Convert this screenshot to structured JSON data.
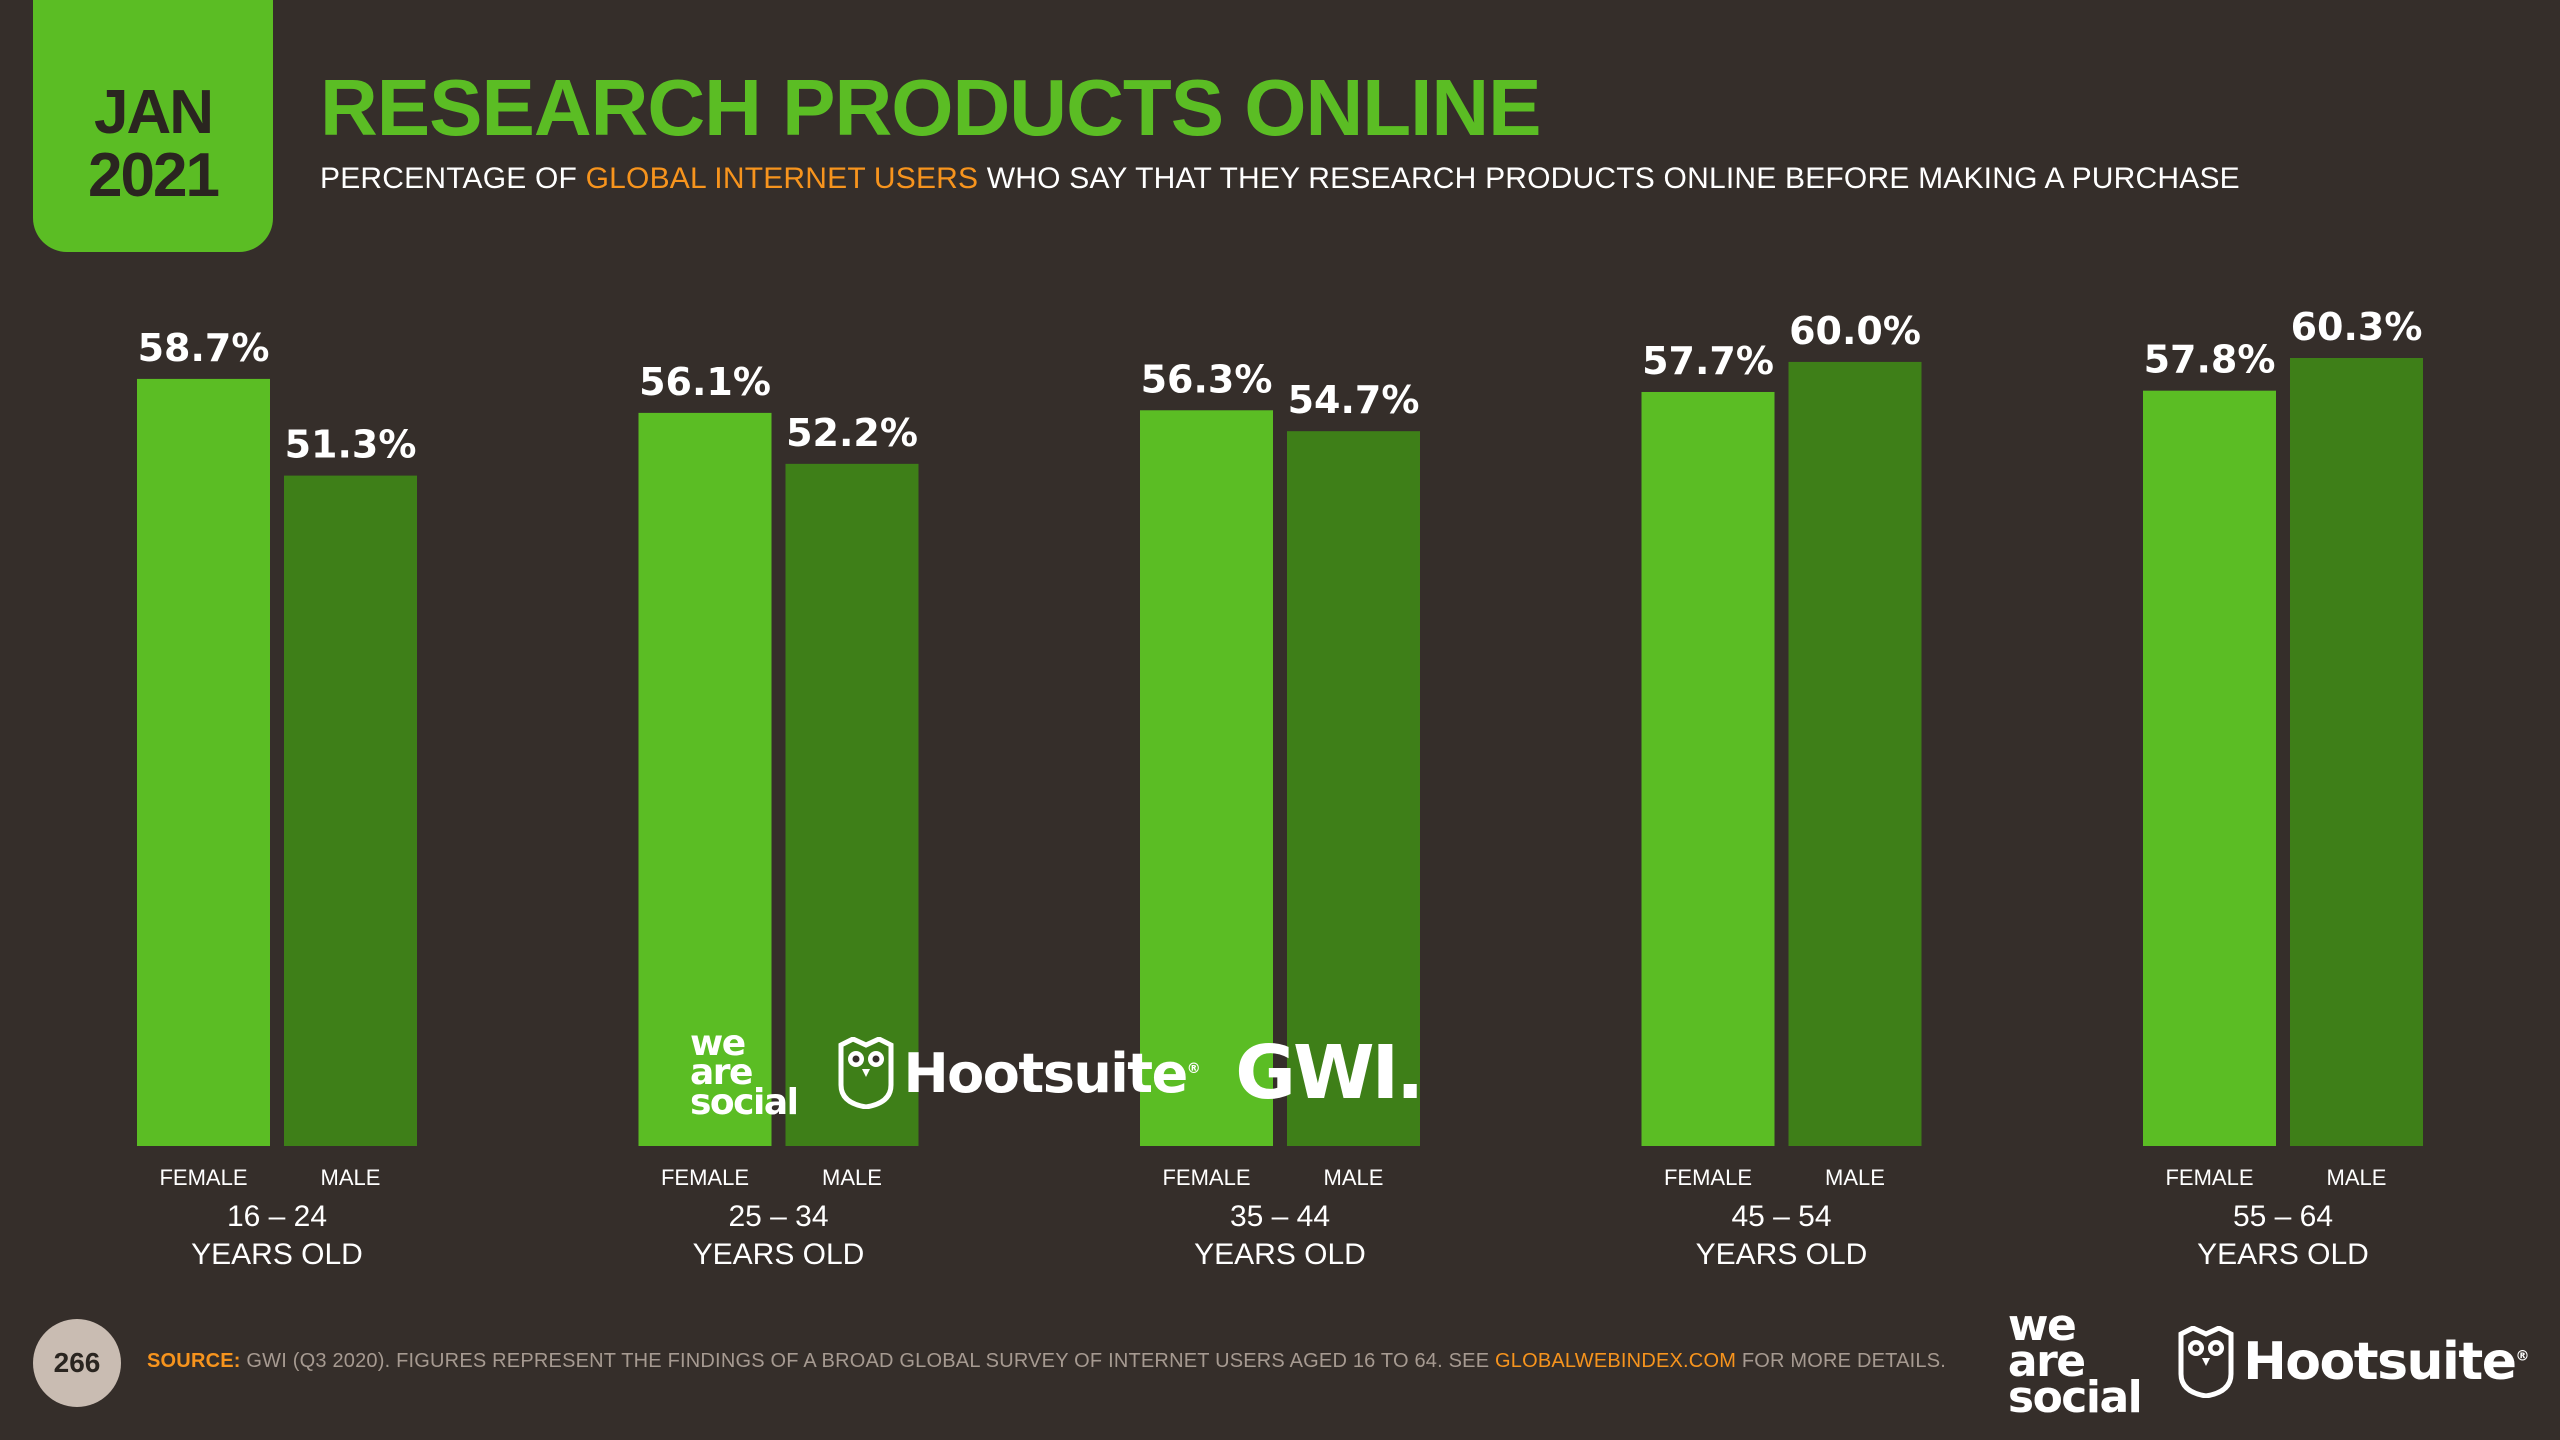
{
  "header": {
    "date_month": "JAN",
    "date_year": "2021",
    "title": "RESEARCH PRODUCTS ONLINE",
    "subtitle_pre": "PERCENTAGE OF ",
    "subtitle_highlight": "GLOBAL INTERNET USERS",
    "subtitle_post": " WHO SAY THAT THEY RESEARCH PRODUCTS ONLINE BEFORE MAKING A PURCHASE"
  },
  "colors": {
    "background": "#352e2a",
    "female": "#5bbd24",
    "male": "#3e7f18",
    "accent": "#f7941d"
  },
  "chart_data": {
    "type": "bar",
    "categories": [
      "16 – 24",
      "25 – 34",
      "35 – 44",
      "45 – 54",
      "55 – 64"
    ],
    "category_suffix": "YEARS OLD",
    "series": [
      {
        "name": "FEMALE",
        "values": [
          58.7,
          56.1,
          56.3,
          57.7,
          57.8
        ]
      },
      {
        "name": "MALE",
        "values": [
          51.3,
          52.2,
          54.7,
          60.0,
          60.3
        ]
      }
    ],
    "value_labels": [
      [
        "58.7%",
        "56.1%",
        "56.3%",
        "57.7%",
        "57.8%"
      ],
      [
        "51.3%",
        "52.2%",
        "54.7%",
        "60.0%",
        "60.3%"
      ]
    ],
    "unit": "%",
    "title": "RESEARCH PRODUCTS ONLINE",
    "xlabel": "",
    "ylabel": "",
    "ylim": [
      0,
      60.3
    ],
    "grid": false,
    "legend": "none"
  },
  "logos": {
    "was_line1": "we",
    "was_line2": "are",
    "was_line3": "social",
    "hootsuite": "Hootsuite",
    "registered": "®",
    "gwi": "GWI."
  },
  "footer": {
    "page_number": "266",
    "source_label": "SOURCE:",
    "source_text": " GWI (Q3 2020). FIGURES REPRESENT THE FINDINGS OF A BROAD GLOBAL SURVEY OF INTERNET USERS AGED 16 TO 64. SEE ",
    "source_link": "GLOBALWEBINDEX.COM",
    "source_end": " FOR MORE DETAILS."
  }
}
